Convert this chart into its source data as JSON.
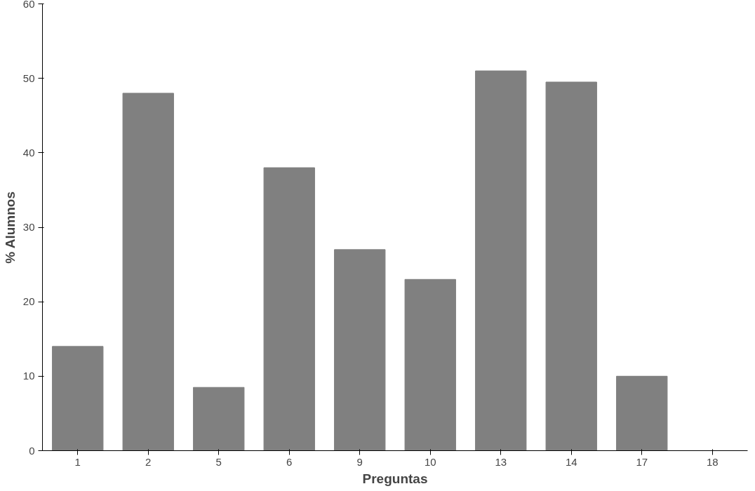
{
  "chart_data": {
    "type": "bar",
    "xlabel": "Preguntas",
    "ylabel": "% Alumnos",
    "categories": [
      "1",
      "2",
      "5",
      "6",
      "9",
      "10",
      "13",
      "14",
      "17",
      "18"
    ],
    "values": [
      14,
      48,
      8.5,
      38,
      27,
      23,
      51,
      49.5,
      10,
      0
    ],
    "color": "#808080",
    "ylim": [
      0,
      60
    ],
    "yticks": [
      0,
      10,
      20,
      30,
      40,
      50,
      60
    ],
    "grid": false
  }
}
